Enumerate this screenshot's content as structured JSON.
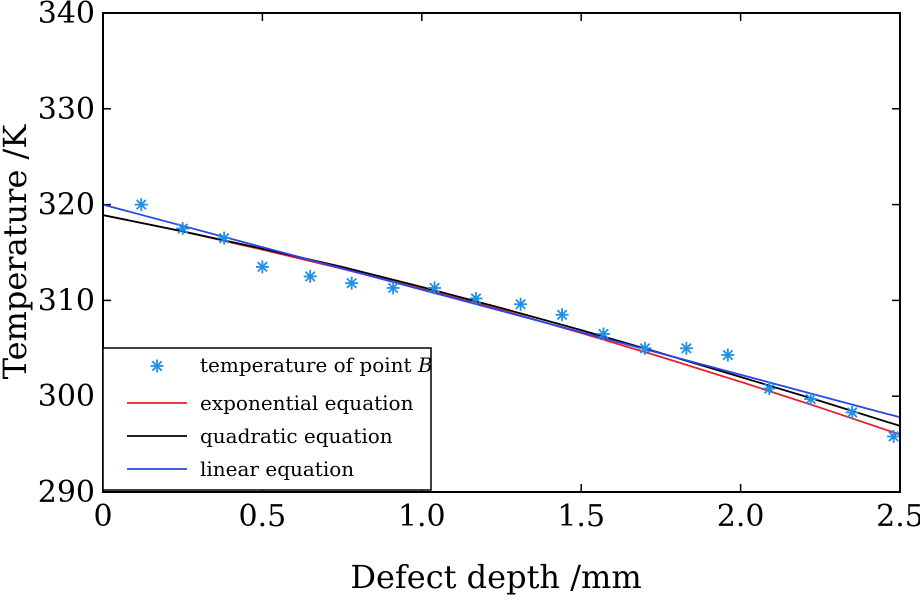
{
  "chart_data": {
    "type": "line",
    "title": "",
    "xlabel": "Defect depth /mm",
    "ylabel": "Temperature /K",
    "xlim": [
      0,
      2.5
    ],
    "ylim": [
      290,
      340
    ],
    "xticks": [
      "0",
      "0.5",
      "1.0",
      "1.5",
      "2.0",
      "2.5"
    ],
    "xtick_values": [
      0,
      0.5,
      1.0,
      1.5,
      2.0,
      2.5
    ],
    "yticks": [
      "290",
      "300",
      "310",
      "320",
      "330",
      "340"
    ],
    "ytick_values": [
      290,
      300,
      310,
      320,
      330,
      340
    ],
    "legend_position": "bottom-left",
    "series": [
      {
        "name": "temperature of point B",
        "name_prefix": "temperature of point ",
        "name_italic": "B",
        "kind": "scatter",
        "marker": "asterisk",
        "color": "#1f8fe8",
        "x": [
          0.12,
          0.25,
          0.38,
          0.5,
          0.65,
          0.78,
          0.91,
          1.04,
          1.17,
          1.31,
          1.44,
          1.57,
          1.7,
          1.83,
          1.96,
          2.09,
          2.22,
          2.35,
          2.48
        ],
        "y": [
          320.0,
          317.5,
          316.5,
          313.5,
          312.5,
          311.8,
          311.3,
          311.3,
          310.2,
          309.6,
          308.5,
          306.5,
          305.0,
          305.0,
          304.3,
          300.8,
          299.7,
          298.3,
          295.8
        ]
      },
      {
        "name": "exponential equation",
        "kind": "line",
        "color": "#e8202a",
        "x": [
          0,
          0.25,
          0.5,
          0.75,
          1.0,
          1.25,
          1.5,
          1.75,
          2.0,
          2.25,
          2.5
        ],
        "y": [
          318.9,
          317.2,
          315.3,
          313.3,
          311.2,
          309.0,
          306.6,
          304.1,
          301.5,
          298.8,
          296.0
        ]
      },
      {
        "name": "quadratic equation",
        "kind": "line",
        "color": "#000000",
        "x": [
          0,
          0.25,
          0.5,
          0.75,
          1.0,
          1.25,
          1.5,
          1.75,
          2.0,
          2.25,
          2.5
        ],
        "y": [
          318.9,
          317.2,
          315.4,
          313.5,
          311.4,
          309.2,
          306.9,
          304.5,
          302.0,
          299.5,
          296.9
        ]
      },
      {
        "name": "linear equation",
        "kind": "line",
        "color": "#2a46e8",
        "x": [
          0,
          2.5
        ],
        "y": [
          320.0,
          297.8
        ]
      }
    ]
  }
}
